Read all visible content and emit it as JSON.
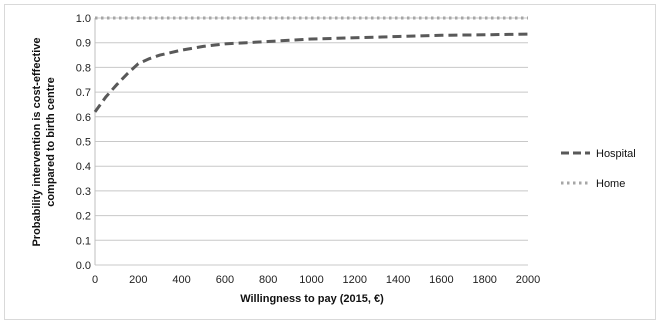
{
  "chart_data": {
    "type": "line",
    "title": "",
    "xlabel": "Willingness to pay (2015, €)",
    "ylabel_line1": "Probability intervention is cost-effective",
    "ylabel_line2": "compared to birth centre",
    "xlim": [
      0,
      2000
    ],
    "ylim": [
      0,
      1.0
    ],
    "x_ticks": [
      0,
      200,
      400,
      600,
      800,
      1000,
      1200,
      1400,
      1600,
      1800,
      2000
    ],
    "y_ticks": [
      0.0,
      0.1,
      0.2,
      0.3,
      0.4,
      0.5,
      0.6,
      0.7,
      0.8,
      0.9,
      1.0
    ],
    "x_tick_labels": [
      "0",
      "200",
      "400",
      "600",
      "800",
      "1000",
      "1200",
      "1400",
      "1600",
      "1800",
      "2000"
    ],
    "y_tick_labels": [
      "0.0",
      "0.1",
      "0.2",
      "0.3",
      "0.4",
      "0.5",
      "0.6",
      "0.7",
      "0.8",
      "0.9",
      "1.0"
    ],
    "grid": "horizontal",
    "legend_position": "right",
    "series": [
      {
        "name": "Hospital",
        "style": "dashed",
        "color": "#595959",
        "x": [
          0,
          50,
          100,
          150,
          200,
          250,
          300,
          400,
          500,
          600,
          700,
          800,
          1000,
          1200,
          1400,
          1600,
          1800,
          2000
        ],
        "y": [
          0.62,
          0.68,
          0.73,
          0.775,
          0.815,
          0.835,
          0.85,
          0.87,
          0.885,
          0.895,
          0.9,
          0.905,
          0.915,
          0.92,
          0.925,
          0.93,
          0.932,
          0.935
        ]
      },
      {
        "name": "Home",
        "style": "dotted",
        "color": "#a6a6a6",
        "x": [
          0,
          2000
        ],
        "y": [
          1.0,
          1.0
        ]
      }
    ]
  }
}
